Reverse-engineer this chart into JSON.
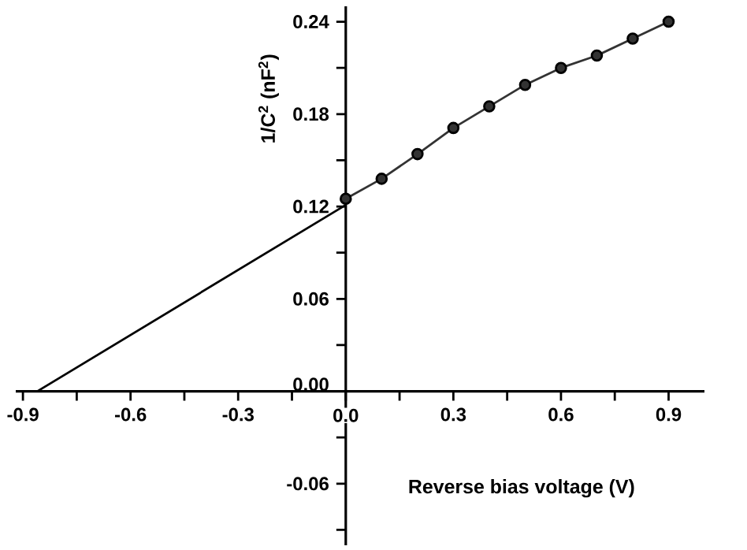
{
  "chart_data": {
    "type": "line",
    "xlabel": "Reverse bias voltage (V)",
    "ylabel": "1/C$^{2}$ (nF$^{2}$)",
    "xlim": [
      -0.92,
      1.0
    ],
    "ylim": [
      -0.1,
      0.25
    ],
    "xticks": [
      {
        "value": -0.9,
        "label": "-0.9"
      },
      {
        "value": -0.75,
        "label": null
      },
      {
        "value": -0.6,
        "label": "-0.6"
      },
      {
        "value": -0.45,
        "label": null
      },
      {
        "value": -0.3,
        "label": "-0.3"
      },
      {
        "value": -0.15,
        "label": null
      },
      {
        "value": 0,
        "label": "0.0"
      },
      {
        "value": 0.15,
        "label": null
      },
      {
        "value": 0.3,
        "label": "0.3"
      },
      {
        "value": 0.45,
        "label": null
      },
      {
        "value": 0.6,
        "label": "0.6"
      },
      {
        "value": 0.75,
        "label": null
      },
      {
        "value": 0.9,
        "label": "0.9"
      }
    ],
    "yticks": [
      {
        "value": -0.09,
        "label": null
      },
      {
        "value": -0.06,
        "label": "-0.06"
      },
      {
        "value": -0.03,
        "label": null
      },
      {
        "value": 0,
        "label": "0.00"
      },
      {
        "value": 0.03,
        "label": null
      },
      {
        "value": 0.06,
        "label": "0.06"
      },
      {
        "value": 0.09,
        "label": null
      },
      {
        "value": 0.12,
        "label": "0.12"
      },
      {
        "value": 0.15,
        "label": null
      },
      {
        "value": 0.18,
        "label": "0.18"
      },
      {
        "value": 0.21,
        "label": null
      },
      {
        "value": 0.24,
        "label": "0.24"
      }
    ],
    "grid": false,
    "series": [
      {
        "color": "#333333",
        "marker": "circle",
        "x": [
          0,
          0.1,
          0.2,
          0.3,
          0.4,
          0.5,
          0.6,
          0.7,
          0.8,
          0.9
        ],
        "values": [
          0.125,
          0.138,
          0.154,
          0.171,
          0.185,
          0.199,
          0.21,
          0.218,
          0.229,
          0.24
        ]
      },
      {
        "color": "#000000",
        "marker": "none",
        "x": [
          -0.86,
          0
        ],
        "values": [
          0,
          0.121
        ]
      }
    ]
  }
}
